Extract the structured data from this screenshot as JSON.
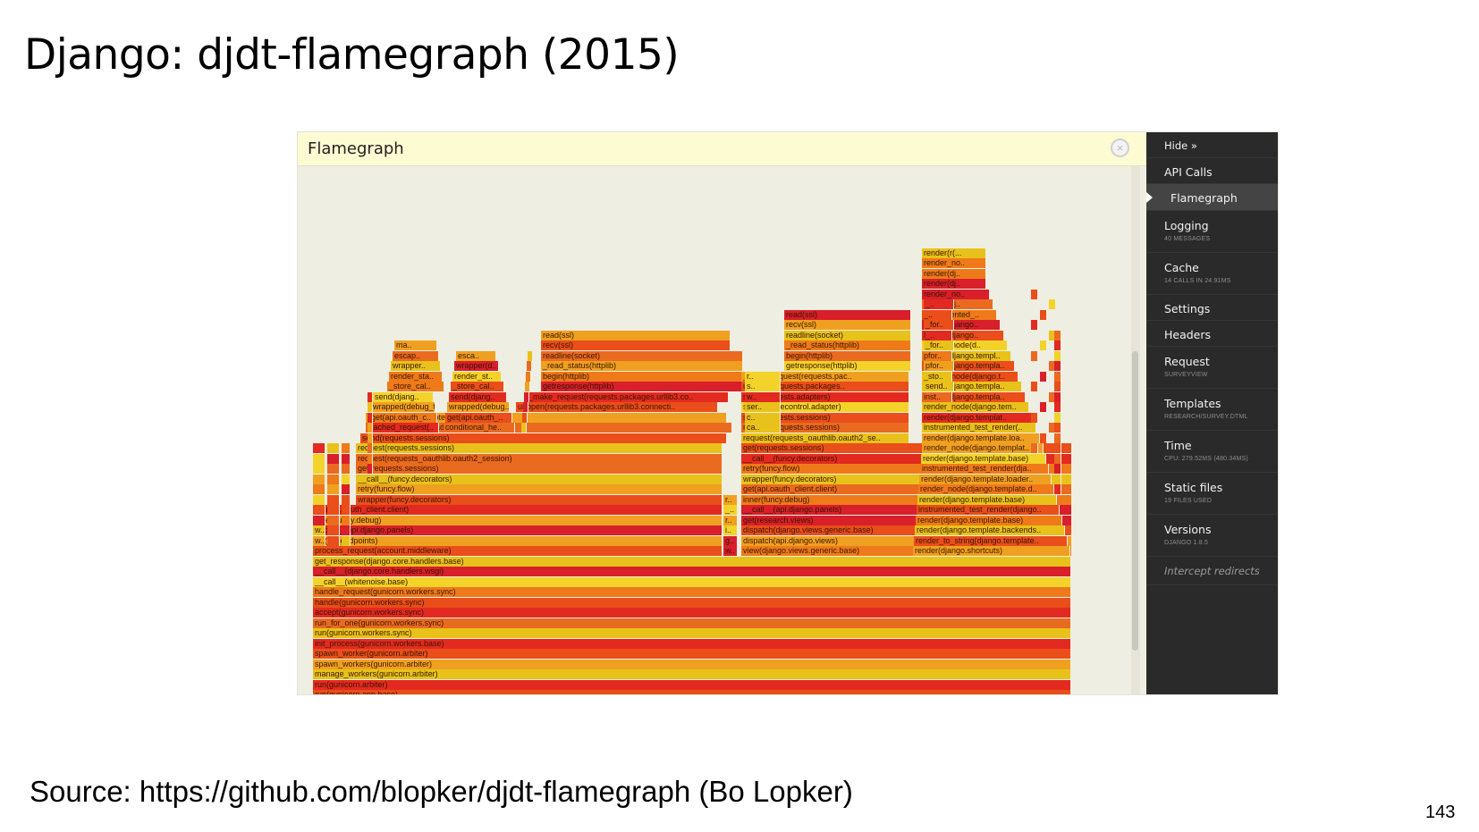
{
  "slide": {
    "title": "Django: djdt-flamegraph (2015)",
    "source": "Source: https://github.com/blopker/djdt-flamegraph (Bo Lopker)",
    "page_number": "143"
  },
  "panel": {
    "title": "Flamegraph",
    "close_icon": "close-icon"
  },
  "toolbar": {
    "hide_label": "Hide »",
    "items": [
      {
        "label": "API Calls",
        "sub": ""
      },
      {
        "label": "Flamegraph",
        "sub": "",
        "active": true
      },
      {
        "label": "Logging",
        "sub": "40 messages"
      },
      {
        "label": "Cache",
        "sub": "14 calls in 24.91ms"
      },
      {
        "label": "Settings",
        "sub": ""
      },
      {
        "label": "Headers",
        "sub": ""
      },
      {
        "label": "Request",
        "sub": "SurveyView"
      },
      {
        "label": "Templates",
        "sub": "research/survey.dtml"
      },
      {
        "label": "Time",
        "sub": "CPU: 279.52ms (480.34ms)"
      },
      {
        "label": "Static files",
        "sub": "19 files used"
      },
      {
        "label": "Versions",
        "sub": "Django 1.8.5"
      }
    ],
    "intercept_label": "Intercept redirects"
  },
  "colors": {
    "flame": [
      "#e8c21a",
      "#f0a020",
      "#ef7a1a",
      "#e94e1b",
      "#e32a20",
      "#d81f2a",
      "#f3d32a",
      "#ea6a20"
    ]
  },
  "flamegraph": {
    "base_stack": [
      "run(gunicorn.app.base)",
      "run(gunicorn.arbiter)",
      "manage_workers(gunicorn.arbiter)",
      "spawn_workers(gunicorn.arbiter)",
      "spawn_worker(gunicorn.arbiter)",
      "init_process(gunicorn.workers.base)",
      "run(gunicorn.workers.sync)",
      "run_for_one(gunicorn.workers.sync)",
      "accept(gunicorn.workers.sync)",
      "handle(gunicorn.workers.sync)",
      "handle_request(gunicorn.workers.sync)",
      "__call__(whitenoise.base)",
      "__call__(django.core.handlers.wsgi)",
      "get_response(django.core.handlers.base)"
    ],
    "left_stack": [
      "process_request(account.middleware)",
      "list(api.endpoints)",
      "__call__(api.django.panels)",
      "inner(funcy.debug)",
      "get(api.oauth_client.client)",
      "wrapper(funcy.decorators)",
      "retry(funcy.flow)",
      "__call__(funcy.decorators)",
      "get(requests.sessions)",
      "request(requests_oauthlib.oauth2_session)",
      "request(requests.sessions)",
      "send(requests.sessions)",
      "send(cachecontrol.adapter)",
      "send(requests.adapters)",
      "urlopen(requests.packages.urllib3.connecti..",
      "_make_request(requests.packages.urllib3.co..",
      "getresponse(httplib)",
      "begin(httplib)",
      "_read_status(httplib)",
      "readline(socket)",
      "recv(ssl)",
      "read(ssl)"
    ],
    "left_small": [
      "cached_request(..",
      "get(api.oauth_c..",
      "wrapped(debug_t..",
      "send(djang..",
      "_store_cal..",
      "render_sta..",
      "wrapper..",
      "escap..",
      "ma.."
    ],
    "left_small2": [
      "conditional_he..",
      "get(api.oauth_..",
      "wrapped(debug..",
      "send(djang..",
      "_store_cal..",
      "render_st..",
      "wrapper(d..",
      "esca.."
    ],
    "middle_stack": [
      "view(django.views.generic.base)",
      "dispatch(api.django.views)",
      "dispatch(django.views.generic.base)",
      "get(research.views)",
      "__call__(api.django.panels)",
      "inner(funcy.debug)",
      "get(api.oauth_client.client)",
      "wrapper(funcy.decorators)",
      "retry(funcy.flow)",
      "__call__(funcy.decorators)",
      "get(requests.sessions)",
      "request(requests_oauthlib.oauth2_se..",
      "request(requests.sessions)",
      "send(requests.sessions)",
      "send(cachecontrol.adapter)",
      "send(requests.adapters)",
      "urlopen(requests.packages..",
      "_make_request(requests.pac..",
      "getresponse(httplib)",
      "begin(httplib)",
      "_read_status(httplib)",
      "readline(socket)",
      "recv(ssl)",
      "read(ssl)"
    ],
    "right_stack": [
      "render(django.shortcuts)",
      "render_to_string(django.template..",
      "render(django.template.backends..",
      "render(django.template.base)",
      "instrumented_test_render(django..",
      "render(django.template.base)",
      "render_node(django.template.d..",
      "render(django.template.loader..",
      "instrumented_test_render(dja..",
      "render(django.template.base)",
      "render_node(django.templat..",
      "render(django.template.loa..",
      "instrumented_test_render(..",
      "render(django.templat..",
      "render_node(django.tem..",
      "render(django.templa..",
      "render(django.templa..",
      "render_node(django.t..",
      "render(django.templa..",
      "render(django.templ..",
      "render_node(d..",
      "render(django..",
      "render(django..",
      "instrumented_..",
      "render(dj..",
      "render_no..",
      "render(dj..",
      "render(dj..",
      "render_no..",
      "render(r(..."
    ],
    "right_small": [
      "inst..",
      "send..",
      "_sto..",
      "pfor..",
      "pfor..",
      "_for..",
      "l_..",
      "_for..",
      "_..",
      "_.."
    ],
    "mid_small": [
      "w..",
      "g..",
      "i..",
      "r..",
      "_..",
      "r.."
    ],
    "mid_small2": [
      "ca..",
      "c..",
      "ser..",
      "w..",
      "s..",
      "r.."
    ]
  }
}
